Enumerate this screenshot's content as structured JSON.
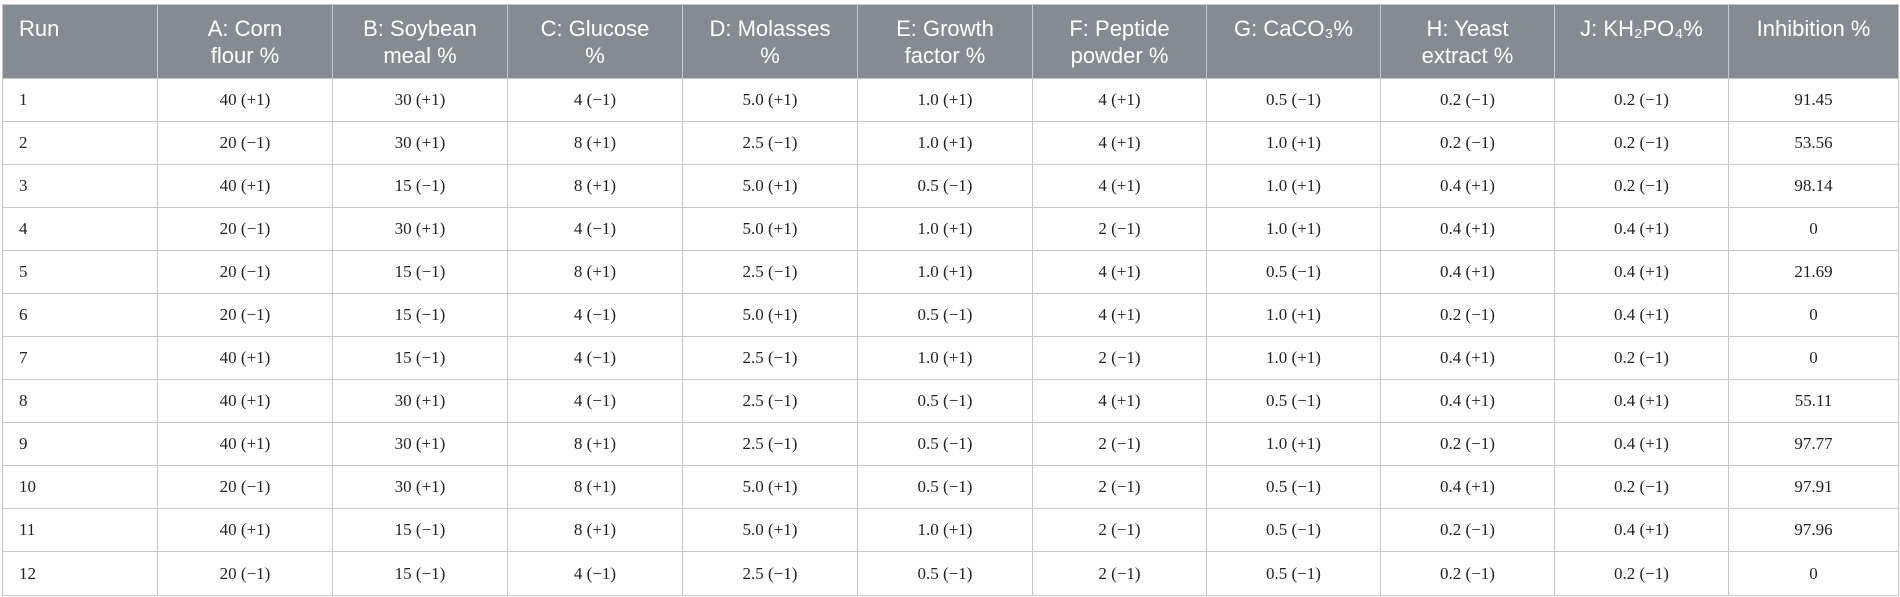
{
  "table": {
    "headers": [
      [
        "Run"
      ],
      [
        "A: Corn",
        "flour %"
      ],
      [
        "B: Soybean",
        "meal %"
      ],
      [
        "C: Glucose",
        "%"
      ],
      [
        "D: Molasses",
        "%"
      ],
      [
        "E: Growth",
        "factor %"
      ],
      [
        "F: Peptide",
        "powder %"
      ],
      [
        "G: CaCO₃%"
      ],
      [
        "H: Yeast",
        "extract %"
      ],
      [
        "J: KH₂PO₄%"
      ],
      [
        "Inhibition %"
      ]
    ],
    "rows": [
      [
        "1",
        "40 (+1)",
        "30 (+1)",
        "4 (−1)",
        "5.0 (+1)",
        "1.0 (+1)",
        "4 (+1)",
        "0.5 (−1)",
        "0.2 (−1)",
        "0.2 (−1)",
        "91.45"
      ],
      [
        "2",
        "20 (−1)",
        "30 (+1)",
        "8 (+1)",
        "2.5 (−1)",
        "1.0 (+1)",
        "4 (+1)",
        "1.0 (+1)",
        "0.2 (−1)",
        "0.2 (−1)",
        "53.56"
      ],
      [
        "3",
        "40 (+1)",
        "15 (−1)",
        "8 (+1)",
        "5.0 (+1)",
        "0.5 (−1)",
        "4 (+1)",
        "1.0 (+1)",
        "0.4 (+1)",
        "0.2 (−1)",
        "98.14"
      ],
      [
        "4",
        "20 (−1)",
        "30 (+1)",
        "4 (−1)",
        "5.0 (+1)",
        "1.0 (+1)",
        "2 (−1)",
        "1.0 (+1)",
        "0.4 (+1)",
        "0.4 (+1)",
        "0"
      ],
      [
        "5",
        "20 (−1)",
        "15 (−1)",
        "8 (+1)",
        "2.5 (−1)",
        "1.0 (+1)",
        "4 (+1)",
        "0.5 (−1)",
        "0.4 (+1)",
        "0.4 (+1)",
        "21.69"
      ],
      [
        "6",
        "20 (−1)",
        "15 (−1)",
        "4 (−1)",
        "5.0 (+1)",
        "0.5 (−1)",
        "4 (+1)",
        "1.0 (+1)",
        "0.2 (−1)",
        "0.4 (+1)",
        "0"
      ],
      [
        "7",
        "40 (+1)",
        "15 (−1)",
        "4 (−1)",
        "2.5 (−1)",
        "1.0 (+1)",
        "2 (−1)",
        "1.0 (+1)",
        "0.4 (+1)",
        "0.2 (−1)",
        "0"
      ],
      [
        "8",
        "40 (+1)",
        "30 (+1)",
        "4 (−1)",
        "2.5 (−1)",
        "0.5 (−1)",
        "4 (+1)",
        "0.5 (−1)",
        "0.4 (+1)",
        "0.4 (+1)",
        "55.11"
      ],
      [
        "9",
        "40 (+1)",
        "30 (+1)",
        "8 (+1)",
        "2.5 (−1)",
        "0.5 (−1)",
        "2 (−1)",
        "1.0 (+1)",
        "0.2 (−1)",
        "0.4 (+1)",
        "97.77"
      ],
      [
        "10",
        "20 (−1)",
        "30 (+1)",
        "8 (+1)",
        "5.0 (+1)",
        "0.5 (−1)",
        "2 (−1)",
        "0.5 (−1)",
        "0.4 (+1)",
        "0.2 (−1)",
        "97.91"
      ],
      [
        "11",
        "40 (+1)",
        "15 (−1)",
        "8 (+1)",
        "5.0 (+1)",
        "1.0 (+1)",
        "2 (−1)",
        "0.5 (−1)",
        "0.2 (−1)",
        "0.4 (+1)",
        "97.96"
      ],
      [
        "12",
        "20 (−1)",
        "15 (−1)",
        "4 (−1)",
        "2.5 (−1)",
        "0.5 (−1)",
        "2 (−1)",
        "0.5 (−1)",
        "0.2 (−1)",
        "0.2 (−1)",
        "0"
      ]
    ],
    "colors": {
      "header_background": "#858b90",
      "header_text": "#ffffff",
      "grid_line": "#c6c6c6",
      "cell_text": "#222222"
    }
  }
}
